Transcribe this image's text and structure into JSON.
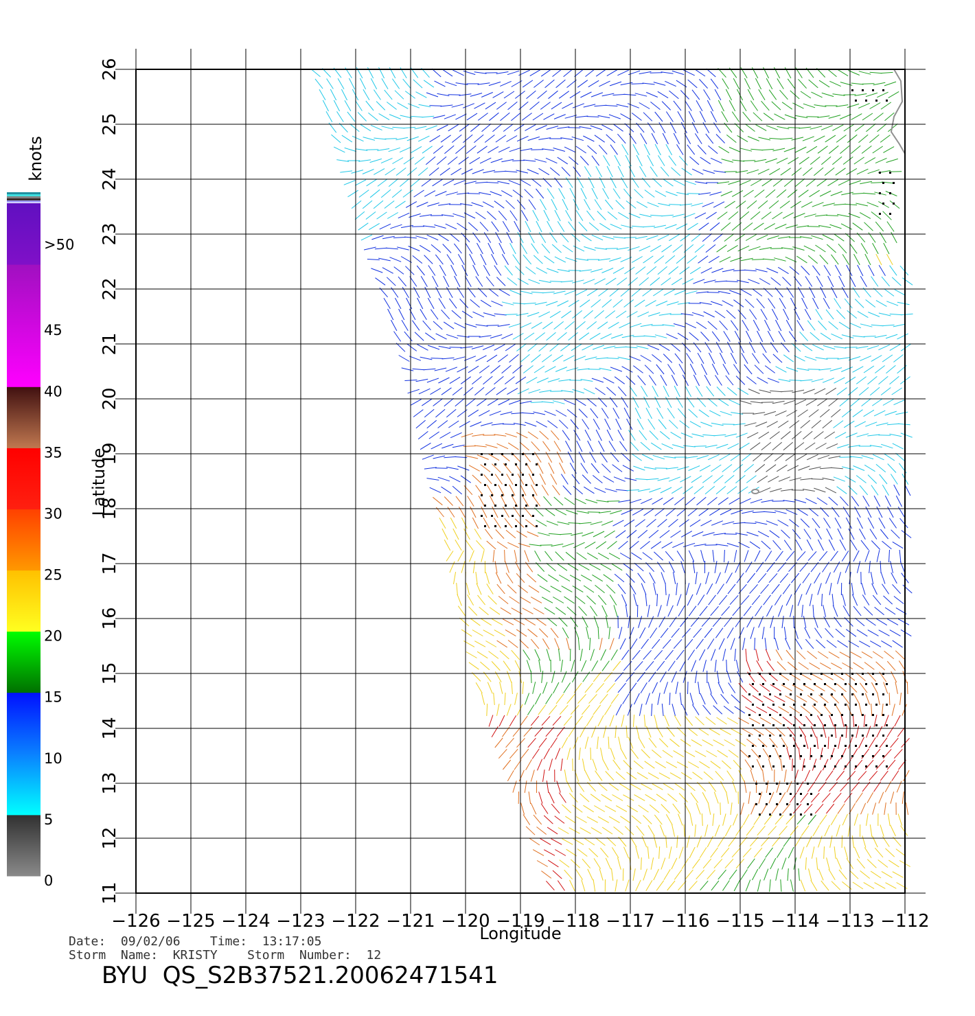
{
  "plot": {
    "xlabel": "Longitude",
    "ylabel": "Latitude",
    "x_ticks": [
      "−126",
      "−125",
      "−124",
      "−123",
      "−122",
      "−121",
      "−120",
      "−119",
      "−118",
      "−117",
      "−116",
      "−115",
      "−114",
      "−113",
      "−112"
    ],
    "y_ticks": [
      "26",
      "25",
      "24",
      "23",
      "22",
      "21",
      "20",
      "19",
      "18",
      "17",
      "16",
      "15",
      "14",
      "13",
      "12",
      "11"
    ],
    "lon_range": [
      -126,
      -112
    ],
    "lat_range": [
      11,
      26
    ]
  },
  "colorbar": {
    "unit": "knots",
    "labels": [
      ">50",
      "45",
      "40",
      "35",
      "30",
      "25",
      "20",
      "15",
      "10",
      "5",
      "0"
    ],
    "bands": [
      {
        "from": 0,
        "to": 5,
        "top": "#303030",
        "bottom": "#8a8a8a"
      },
      {
        "from": 5,
        "to": 10,
        "top": "#0a80ff",
        "bottom": "#00ffff"
      },
      {
        "from": 10,
        "to": 15,
        "top": "#0010ff",
        "bottom": "#0a80ff"
      },
      {
        "from": 15,
        "to": 20,
        "top": "#00ff00",
        "bottom": "#007000"
      },
      {
        "from": 20,
        "to": 25,
        "top": "#ffc000",
        "bottom": "#ffff20"
      },
      {
        "from": 25,
        "to": 30,
        "top": "#ff4000",
        "bottom": "#ff9800"
      },
      {
        "from": 30,
        "to": 35,
        "top": "#ff0000",
        "bottom": "#ff2010"
      },
      {
        "from": 35,
        "to": 40,
        "top": "#401010",
        "bottom": "#c07850"
      },
      {
        "from": 40,
        "to": 50,
        "top": "#a010c0",
        "bottom": "#ff00ff"
      },
      {
        "from": 50,
        "to": 55,
        "top": "#6010c0",
        "bottom": "#8010c8"
      }
    ]
  },
  "meta": {
    "date_line": "Date:  09/02/06    Time:  13:17:05",
    "storm_line": "Storm  Name:  KRISTY    Storm  Number:  12",
    "product_id": "BYU  QS_S2B37521.20062471541"
  },
  "colors": {
    "calm": "#505050",
    "light": "#20c8e8",
    "moderate": "#1030e0",
    "fresh": "#20a020",
    "strong": "#f0d020",
    "gale": "#e07020",
    "storm": "#d01010",
    "violent": "#a020c0",
    "coast": "#909090"
  }
}
